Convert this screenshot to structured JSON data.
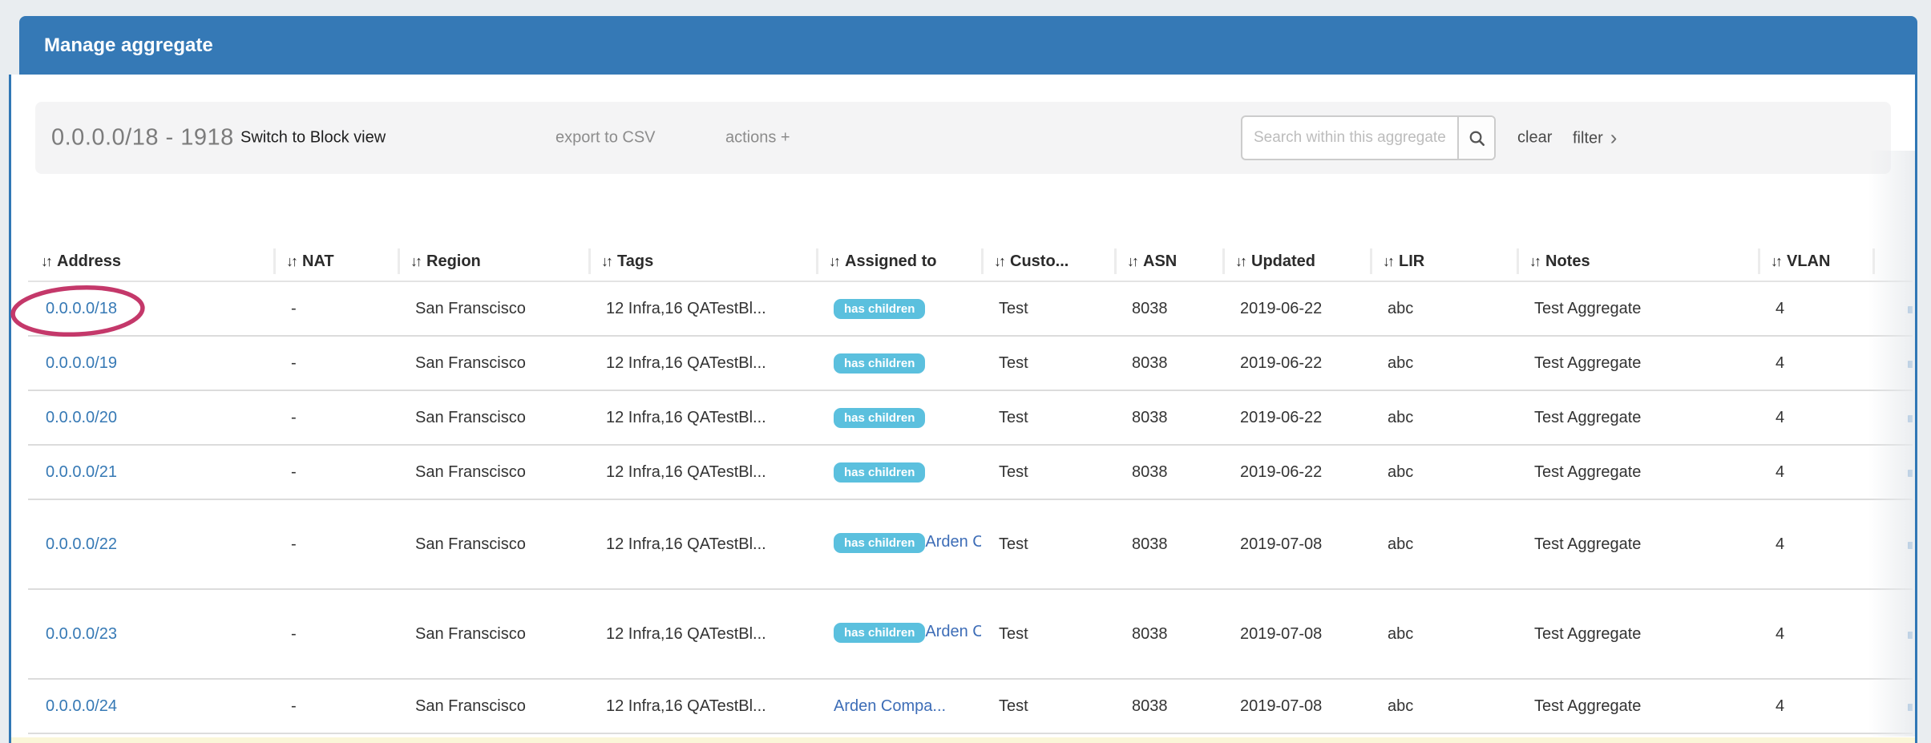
{
  "header": {
    "title": "Manage aggregate"
  },
  "toolbar": {
    "aggregate_label": "0.0.0.0/18 - 1918",
    "switch_view_label": "Switch to Block view",
    "export_csv_label": "export to CSV",
    "actions_label": "actions +",
    "search": {
      "placeholder": "Search within this aggregate"
    },
    "clear_label": "clear",
    "filter_label": "filter",
    "filter_chevron": "›"
  },
  "table": {
    "sort_icon": "↓↑",
    "columns": [
      "Address",
      "NAT",
      "Region",
      "Tags",
      "Assigned to",
      "Custo...",
      "ASN",
      "Updated",
      "LIR",
      "Notes",
      "VLAN"
    ],
    "badge_label": "has children",
    "rows": [
      {
        "address": "0.0.0.0/18",
        "nat": "-",
        "region": "San Franscisco",
        "tags": "12 Infra,16 QATestBl...",
        "has_children": true,
        "assigned_link": "",
        "customer": "Test",
        "asn": "8038",
        "updated": "2019-06-22",
        "lir": "abc",
        "notes": "Test Aggregate",
        "vlan": "4",
        "circled": true
      },
      {
        "address": "0.0.0.0/19",
        "nat": "-",
        "region": "San Franscisco",
        "tags": "12 Infra,16 QATestBl...",
        "has_children": true,
        "assigned_link": "",
        "customer": "Test",
        "asn": "8038",
        "updated": "2019-06-22",
        "lir": "abc",
        "notes": "Test Aggregate",
        "vlan": "4",
        "circled": false
      },
      {
        "address": "0.0.0.0/20",
        "nat": "-",
        "region": "San Franscisco",
        "tags": "12 Infra,16 QATestBl...",
        "has_children": true,
        "assigned_link": "",
        "customer": "Test",
        "asn": "8038",
        "updated": "2019-06-22",
        "lir": "abc",
        "notes": "Test Aggregate",
        "vlan": "4",
        "circled": false
      },
      {
        "address": "0.0.0.0/21",
        "nat": "-",
        "region": "San Franscisco",
        "tags": "12 Infra,16 QATestBl...",
        "has_children": true,
        "assigned_link": "",
        "customer": "Test",
        "asn": "8038",
        "updated": "2019-06-22",
        "lir": "abc",
        "notes": "Test Aggregate",
        "vlan": "4",
        "circled": false
      },
      {
        "address": "0.0.0.0/22",
        "nat": "-",
        "region": "San Franscisco",
        "tags": "12 Infra,16 QATestBl...",
        "has_children": true,
        "assigned_link": "Arden Companies",
        "customer": "Test",
        "asn": "8038",
        "updated": "2019-07-08",
        "lir": "abc",
        "notes": "Test Aggregate",
        "vlan": "4",
        "circled": false
      },
      {
        "address": "0.0.0.0/23",
        "nat": "-",
        "region": "San Franscisco",
        "tags": "12 Infra,16 QATestBl...",
        "has_children": true,
        "assigned_link": "Arden Companies",
        "customer": "Test",
        "asn": "8038",
        "updated": "2019-07-08",
        "lir": "abc",
        "notes": "Test Aggregate",
        "vlan": "4",
        "circled": false
      },
      {
        "address": "0.0.0.0/24",
        "nat": "-",
        "region": "San Franscisco",
        "tags": "12 Infra,16 QATestBl...",
        "has_children": false,
        "assigned_link": "Arden Compa...",
        "customer": "Test",
        "asn": "8038",
        "updated": "2019-07-08",
        "lir": "abc",
        "notes": "Test Aggregate",
        "vlan": "4",
        "circled": false
      }
    ]
  },
  "colors": {
    "header_blue": "#3579b6",
    "border_blue": "#3077b5",
    "address_link": "#3679b5",
    "assigned_link": "#3d6db7",
    "badge_bg": "#5bc0de",
    "badge_text": "#ffffff",
    "annotation_red": "#c12d62",
    "highlight_row_yellow": "#faf6d8"
  }
}
